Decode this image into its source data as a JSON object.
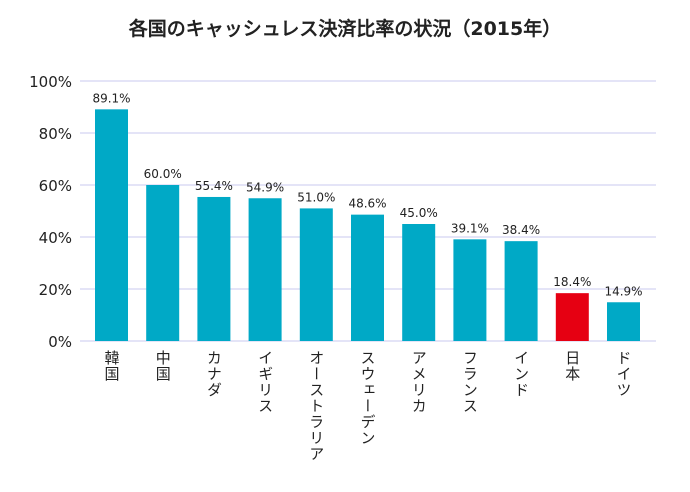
{
  "chart_data": {
    "type": "bar",
    "title": "各国のキャッシュレス決済比率の状況（2015年）",
    "categories": [
      "韓国",
      "中国",
      "カナダ",
      "イギリス",
      "オーストラリア",
      "スウェーデン",
      "アメリカ",
      "フランス",
      "インド",
      "日本",
      "ドイツ"
    ],
    "values": [
      89.1,
      60.0,
      55.4,
      54.9,
      51.0,
      48.6,
      45.0,
      39.1,
      38.4,
      18.4,
      14.9
    ],
    "data_labels": [
      "89.1%",
      "60.0%",
      "55.4%",
      "54.9%",
      "51.0%",
      "48.6%",
      "45.0%",
      "39.1%",
      "38.4%",
      "18.4%",
      "14.9%"
    ],
    "ylim": [
      0,
      100
    ],
    "yticks": [
      "0%",
      "20%",
      "40%",
      "60%",
      "80%",
      "100%"
    ],
    "grid": true,
    "colors": {
      "default": "#00a9c6",
      "highlight": "#e60012",
      "highlight_category": "日本",
      "grid": "#c9c9ef"
    }
  }
}
